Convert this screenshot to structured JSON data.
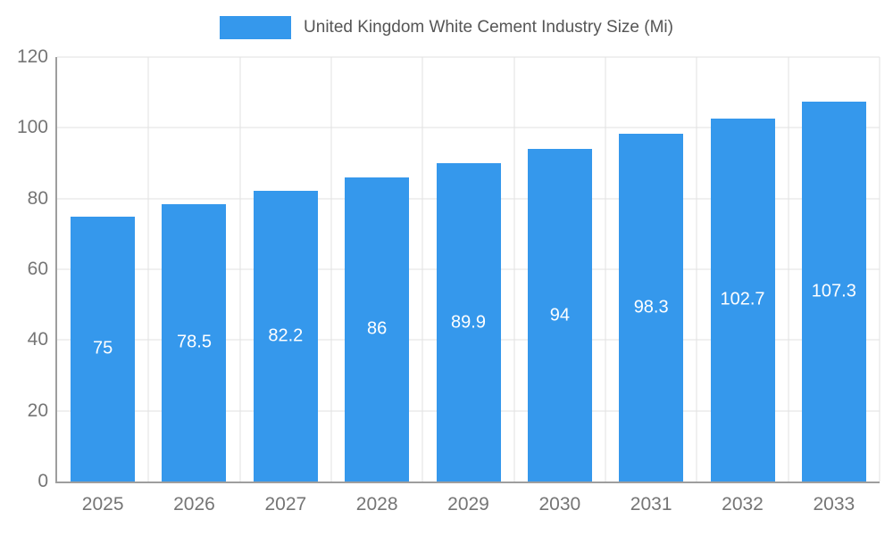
{
  "chart_data": {
    "type": "bar",
    "title": "United Kingdom White Cement Industry Size (Mi)",
    "categories": [
      "2025",
      "2026",
      "2027",
      "2028",
      "2029",
      "2030",
      "2031",
      "2032",
      "2033"
    ],
    "values": [
      75,
      78.5,
      82.2,
      86,
      89.9,
      94,
      98.3,
      102.7,
      107.3
    ],
    "value_labels": [
      "75",
      "78.5",
      "82.2",
      "86",
      "89.9",
      "94",
      "98.3",
      "102.7",
      "107.3"
    ],
    "xlabel": "",
    "ylabel": "",
    "ylim": [
      0,
      120
    ],
    "y_ticks": [
      0,
      20,
      40,
      60,
      80,
      100,
      120
    ],
    "grid": true,
    "legend_position": "top-center",
    "colors": {
      "bar": "#3598ec",
      "value_label": "#ffffff",
      "axis_text": "#757575",
      "title_text": "#555555",
      "gridline": "#e2e2e2",
      "axis_line": "#9e9e9e"
    }
  }
}
